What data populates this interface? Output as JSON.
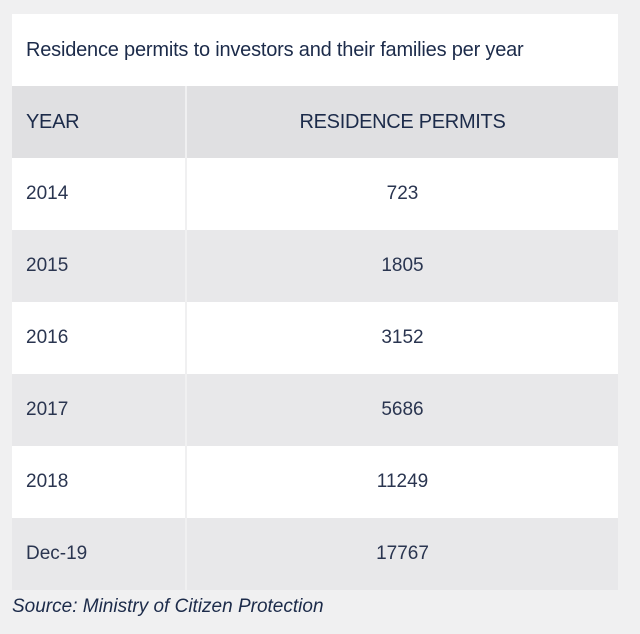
{
  "chart_data": {
    "type": "table",
    "title": "Residence permits to investors and their families per year",
    "columns": [
      "YEAR",
      "RESIDENCE PERMITS"
    ],
    "rows": [
      {
        "year": "2014",
        "permits": "723"
      },
      {
        "year": "2015",
        "permits": "1805"
      },
      {
        "year": "2016",
        "permits": "3152"
      },
      {
        "year": "2017",
        "permits": "5686"
      },
      {
        "year": "2018",
        "permits": "11249"
      },
      {
        "year": "Dec-19",
        "permits": "17767"
      }
    ],
    "source": "Source: Ministry of Citizen Protection"
  }
}
